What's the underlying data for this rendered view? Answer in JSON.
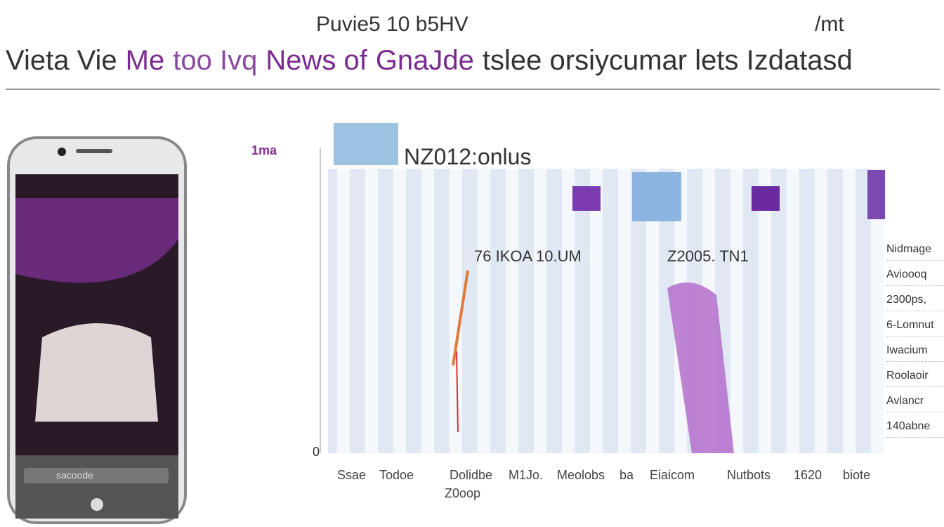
{
  "header": {
    "top_left": "Puvie5 10 b5HV",
    "top_right": "/mt",
    "headline": [
      "Vieta Vie",
      "Me",
      "too Ivq",
      "News of",
      "GnaJde",
      "tslee orsiycumar lets Izdatasd"
    ]
  },
  "phone": {
    "button": "sacoode"
  },
  "panel": {
    "side_label": "1ma",
    "title": "NZ012:onlus",
    "axis_zero": "0",
    "annotations": [
      "76 IKOA 10.UM",
      "Z2005. TN1"
    ],
    "x_labels": [
      "Ssae",
      "Todoe",
      "Dolidbe",
      "M1Jo.",
      "Meolobs",
      "ba",
      "Eiaicom",
      "Nutbots",
      "1620",
      "biote"
    ],
    "x_sublabel": "Z0oop"
  },
  "side_list": [
    "Nidmage",
    "Avioooq",
    "2300ps,",
    "6-Lomnut",
    "Iwacium",
    "Roolaoir",
    "Avlancr",
    "140abne"
  ]
}
